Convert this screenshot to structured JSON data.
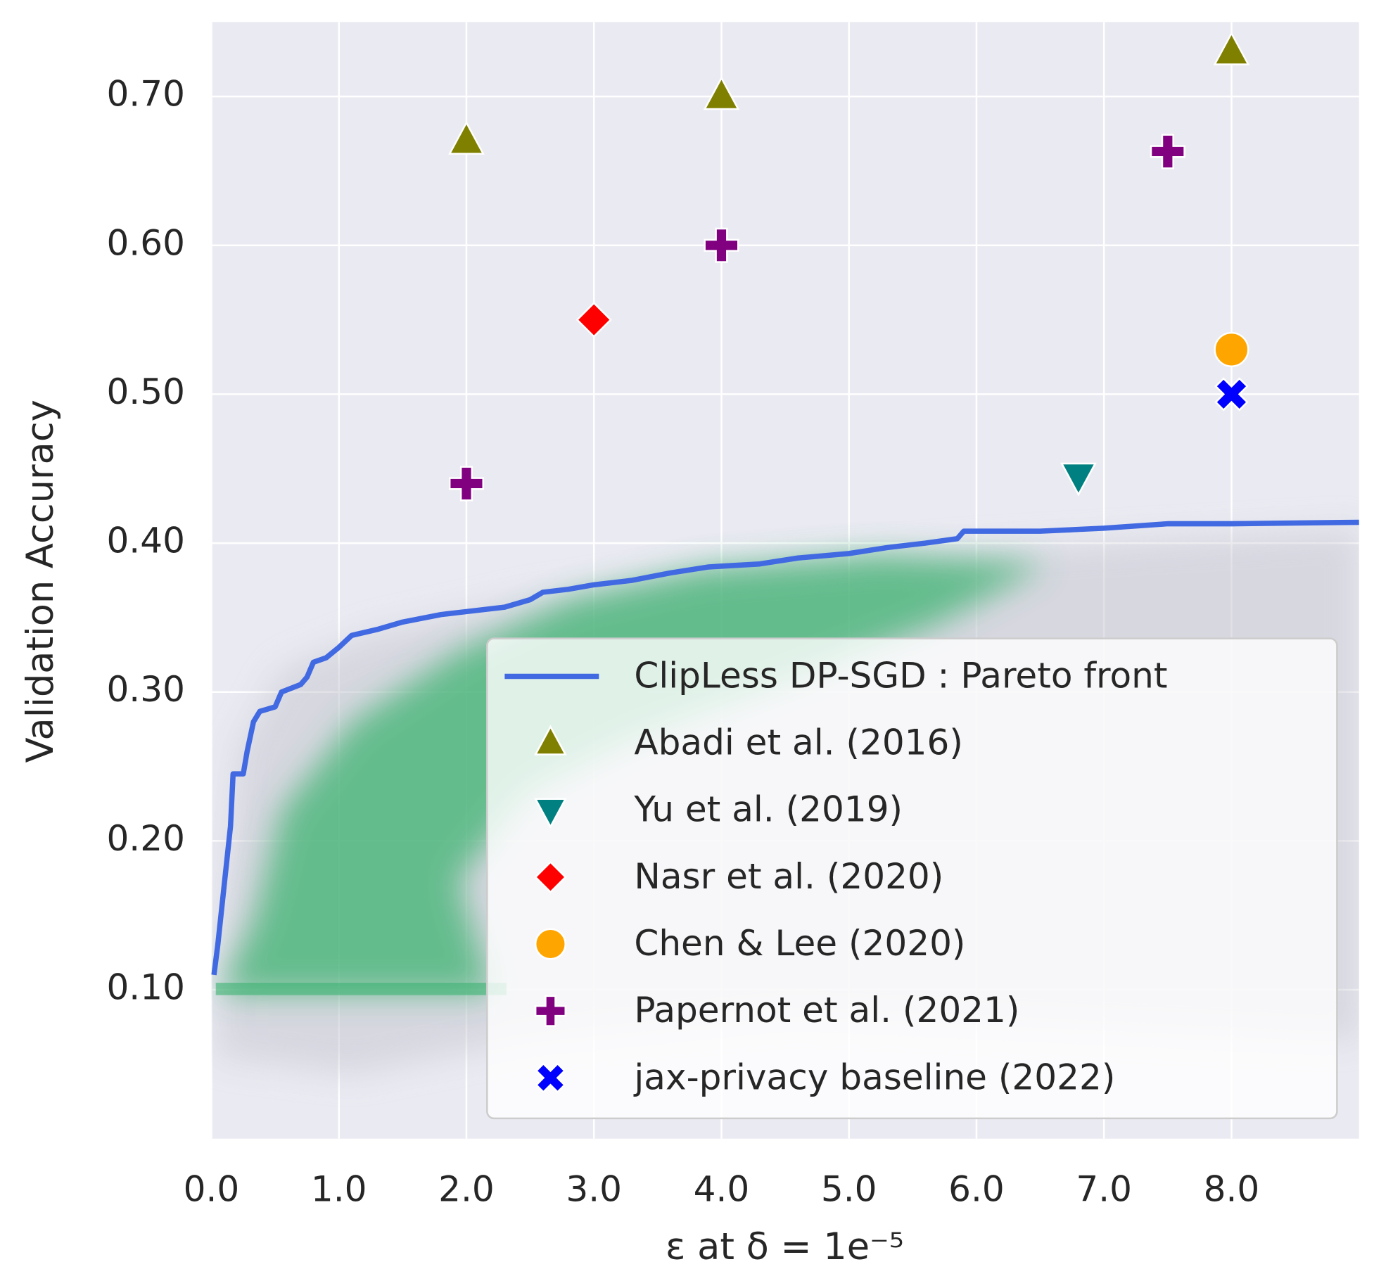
{
  "chart_data": {
    "type": "scatter",
    "xlabel": "ε at δ = 1e⁻⁵",
    "ylabel": "Validation Accuracy",
    "xlim": [
      0,
      9
    ],
    "ylim": [
      0,
      0.75
    ],
    "xticks": [
      {
        "value": 0,
        "label": "0.0"
      },
      {
        "value": 1,
        "label": "1.0"
      },
      {
        "value": 2,
        "label": "2.0"
      },
      {
        "value": 3,
        "label": "3.0"
      },
      {
        "value": 4,
        "label": "4.0"
      },
      {
        "value": 5,
        "label": "5.0"
      },
      {
        "value": 6,
        "label": "6.0"
      },
      {
        "value": 7,
        "label": "7.0"
      },
      {
        "value": 8,
        "label": "8.0"
      }
    ],
    "yticks": [
      {
        "value": 0.1,
        "label": "0.10"
      },
      {
        "value": 0.2,
        "label": "0.20"
      },
      {
        "value": 0.3,
        "label": "0.30"
      },
      {
        "value": 0.4,
        "label": "0.40"
      },
      {
        "value": 0.5,
        "label": "0.50"
      },
      {
        "value": 0.6,
        "label": "0.60"
      },
      {
        "value": 0.7,
        "label": "0.70"
      }
    ],
    "grid": true,
    "legend": "lower right",
    "series": [
      {
        "name": "ClipLess DP-SGD : Pareto front",
        "color": "#4169e1",
        "marker": "line",
        "x": [
          0.02,
          0.05,
          0.1,
          0.15,
          0.17,
          0.25,
          0.28,
          0.33,
          0.38,
          0.5,
          0.55,
          0.7,
          0.75,
          0.8,
          0.9,
          1.0,
          1.1,
          1.3,
          1.5,
          1.8,
          2.0,
          2.3,
          2.5,
          2.6,
          2.8,
          3.0,
          3.3,
          3.6,
          3.9,
          4.3,
          4.6,
          5.0,
          5.3,
          5.6,
          5.85,
          5.9,
          6.5,
          7.0,
          7.5,
          8.0,
          9.0
        ],
        "values": [
          0.11,
          0.13,
          0.17,
          0.21,
          0.245,
          0.245,
          0.26,
          0.28,
          0.287,
          0.29,
          0.3,
          0.305,
          0.31,
          0.32,
          0.323,
          0.33,
          0.338,
          0.342,
          0.347,
          0.352,
          0.354,
          0.357,
          0.362,
          0.367,
          0.369,
          0.372,
          0.375,
          0.38,
          0.384,
          0.386,
          0.39,
          0.393,
          0.397,
          0.4,
          0.403,
          0.408,
          0.408,
          0.41,
          0.413,
          0.413,
          0.414
        ]
      },
      {
        "name": "Abadi et al. (2016)",
        "color": "#808000",
        "marker": "triangle-up",
        "x": [
          2,
          4,
          8
        ],
        "values": [
          0.67,
          0.7,
          0.73
        ]
      },
      {
        "name": "Yu et al. (2019)",
        "color": "#008080",
        "marker": "triangle-down",
        "x": [
          6.8
        ],
        "values": [
          0.445
        ]
      },
      {
        "name": "Nasr et al. (2020)",
        "color": "#ff0000",
        "marker": "diamond",
        "x": [
          3
        ],
        "values": [
          0.55
        ]
      },
      {
        "name": "Chen & Lee (2020)",
        "color": "#ffa500",
        "marker": "circle",
        "x": [
          8
        ],
        "values": [
          0.53
        ]
      },
      {
        "name": "Papernot et al. (2021)",
        "color": "#800080",
        "marker": "plus",
        "x": [
          2,
          4,
          7.5
        ],
        "values": [
          0.44,
          0.6,
          0.663
        ]
      },
      {
        "name": "jax-privacy baseline (2022)",
        "color": "#0000ff",
        "marker": "x",
        "x": [
          8
        ],
        "values": [
          0.5
        ]
      }
    ]
  }
}
